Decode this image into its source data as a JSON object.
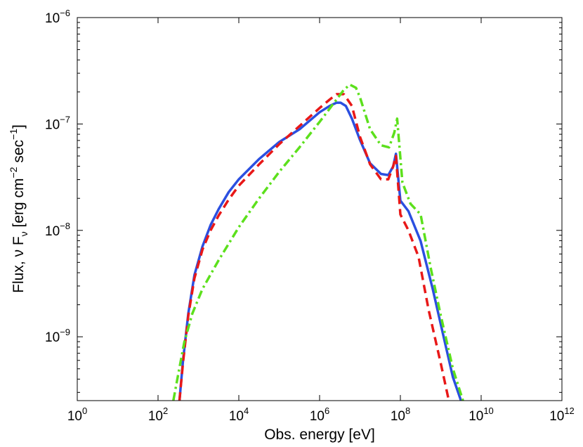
{
  "chart_data": {
    "type": "line",
    "title": "",
    "xlabel": "Obs. energy [eV]",
    "ylabel": "Flux, ν Fν [erg cm⁻² sec⁻¹]",
    "ylabel_parts": {
      "main": "Flux, ν F",
      "nu_sub": "ν",
      "bracket_open": " [erg cm",
      "exp1": "−2",
      "mid": " sec",
      "exp2": "−1",
      "bracket_close": "]"
    },
    "x_scale": "log",
    "y_scale": "log",
    "xlim_log10": [
      0,
      12
    ],
    "ylim_log10": [
      -9.6,
      -6
    ],
    "x_ticks": [
      {
        "base": "10",
        "exp": "0"
      },
      {
        "base": "10",
        "exp": "2"
      },
      {
        "base": "10",
        "exp": "4"
      },
      {
        "base": "10",
        "exp": "6"
      },
      {
        "base": "10",
        "exp": "8"
      },
      {
        "base": "10",
        "exp": "10"
      },
      {
        "base": "10",
        "exp": "12"
      }
    ],
    "x_tick_values_log10": [
      0,
      2,
      4,
      6,
      8,
      10,
      12
    ],
    "y_ticks": [
      {
        "base": "10",
        "exp": "−9"
      },
      {
        "base": "10",
        "exp": "−8"
      },
      {
        "base": "10",
        "exp": "−7"
      },
      {
        "base": "10",
        "exp": "−6"
      }
    ],
    "y_tick_values_log10": [
      -9,
      -8,
      -7,
      -6
    ],
    "grid": false,
    "series": [
      {
        "name": "blue-solid",
        "color": "#2b4fe0",
        "style": "solid",
        "points_log10": [
          [
            2.53,
            -9.6
          ],
          [
            2.62,
            -9.22
          ],
          [
            2.75,
            -8.78
          ],
          [
            2.9,
            -8.42
          ],
          [
            3.1,
            -8.15
          ],
          [
            3.3,
            -7.95
          ],
          [
            3.5,
            -7.8
          ],
          [
            3.75,
            -7.64
          ],
          [
            4.0,
            -7.52
          ],
          [
            4.5,
            -7.33
          ],
          [
            5.0,
            -7.17
          ],
          [
            5.5,
            -7.05
          ],
          [
            6.0,
            -6.89
          ],
          [
            6.25,
            -6.83
          ],
          [
            6.42,
            -6.8
          ],
          [
            6.52,
            -6.8
          ],
          [
            6.65,
            -6.83
          ],
          [
            6.8,
            -6.95
          ],
          [
            7.0,
            -7.15
          ],
          [
            7.25,
            -7.37
          ],
          [
            7.52,
            -7.47
          ],
          [
            7.7,
            -7.48
          ],
          [
            7.82,
            -7.4
          ],
          [
            7.89,
            -7.28
          ],
          [
            8.0,
            -7.72
          ],
          [
            8.2,
            -7.82
          ],
          [
            8.5,
            -8.1
          ],
          [
            8.8,
            -8.55
          ],
          [
            9.1,
            -9.05
          ],
          [
            9.3,
            -9.38
          ],
          [
            9.5,
            -9.6
          ]
        ]
      },
      {
        "name": "red-dashed",
        "color": "#e81818",
        "style": "dashed",
        "points_log10": [
          [
            2.53,
            -9.6
          ],
          [
            2.62,
            -9.24
          ],
          [
            2.75,
            -8.8
          ],
          [
            2.9,
            -8.45
          ],
          [
            3.1,
            -8.18
          ],
          [
            3.3,
            -8.0
          ],
          [
            3.5,
            -7.86
          ],
          [
            3.75,
            -7.71
          ],
          [
            4.0,
            -7.58
          ],
          [
            4.5,
            -7.38
          ],
          [
            5.0,
            -7.19
          ],
          [
            5.5,
            -7.02
          ],
          [
            6.0,
            -6.85
          ],
          [
            6.25,
            -6.77
          ],
          [
            6.42,
            -6.72
          ],
          [
            6.6,
            -6.72
          ],
          [
            6.8,
            -6.83
          ],
          [
            7.0,
            -7.12
          ],
          [
            7.25,
            -7.38
          ],
          [
            7.52,
            -7.52
          ],
          [
            7.7,
            -7.52
          ],
          [
            7.82,
            -7.4
          ],
          [
            7.89,
            -7.3
          ],
          [
            8.0,
            -7.85
          ],
          [
            8.2,
            -8.0
          ],
          [
            8.45,
            -8.25
          ],
          [
            8.7,
            -8.75
          ],
          [
            9.0,
            -9.25
          ],
          [
            9.2,
            -9.6
          ]
        ]
      },
      {
        "name": "green-dashdot",
        "color": "#5ce01c",
        "style": "dashdot",
        "points_log10": [
          [
            2.38,
            -9.6
          ],
          [
            2.5,
            -9.35
          ],
          [
            2.65,
            -9.05
          ],
          [
            2.85,
            -8.78
          ],
          [
            3.1,
            -8.55
          ],
          [
            3.5,
            -8.28
          ],
          [
            4.0,
            -7.97
          ],
          [
            4.5,
            -7.7
          ],
          [
            5.0,
            -7.45
          ],
          [
            5.5,
            -7.22
          ],
          [
            6.0,
            -6.98
          ],
          [
            6.4,
            -6.78
          ],
          [
            6.6,
            -6.68
          ],
          [
            6.75,
            -6.63
          ],
          [
            6.9,
            -6.66
          ],
          [
            7.0,
            -6.75
          ],
          [
            7.25,
            -7.05
          ],
          [
            7.52,
            -7.2
          ],
          [
            7.72,
            -7.22
          ],
          [
            7.85,
            -7.08
          ],
          [
            7.92,
            -6.95
          ],
          [
            8.05,
            -7.55
          ],
          [
            8.25,
            -7.75
          ],
          [
            8.5,
            -7.85
          ],
          [
            8.75,
            -8.35
          ],
          [
            9.0,
            -8.8
          ],
          [
            9.3,
            -9.3
          ],
          [
            9.55,
            -9.6
          ]
        ]
      }
    ]
  }
}
